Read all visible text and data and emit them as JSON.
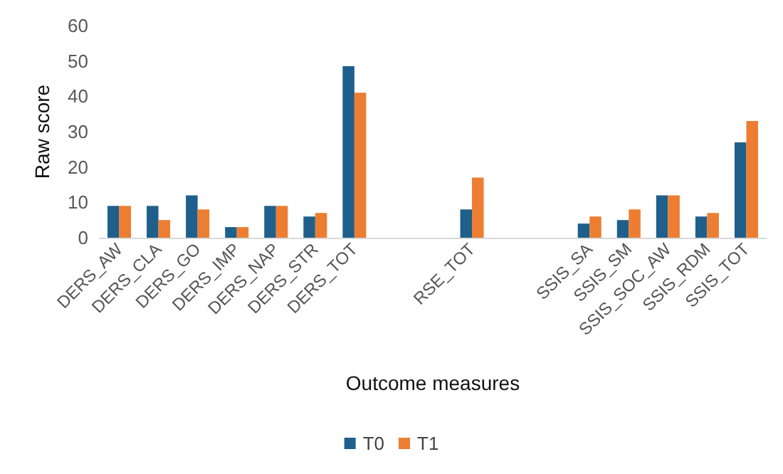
{
  "chart_data": {
    "type": "bar",
    "xlabel": "Outcome measures",
    "ylabel": "Raw score",
    "categories": [
      "DERS_AW",
      "DERS_CLA",
      "DERS_GO",
      "DERS_IMP",
      "DERS_NAP",
      "DERS_STR",
      "DERS_TOT",
      null,
      null,
      "RSE_TOT",
      null,
      null,
      "SSIS_SA",
      "SSIS_SM",
      "SSIS_SOC_AW",
      "SSIS_RDM",
      "SSIS_TOT"
    ],
    "series": [
      {
        "name": "T0",
        "color": "#1f5f8b",
        "values": [
          9,
          9,
          12,
          3,
          9,
          6,
          48.5,
          null,
          null,
          8,
          null,
          null,
          4,
          5,
          12,
          6,
          27
        ]
      },
      {
        "name": "T1",
        "color": "#ed7d31",
        "values": [
          9,
          5,
          8,
          3,
          9,
          7,
          41,
          null,
          null,
          17,
          null,
          null,
          6,
          8,
          12,
          7,
          33
        ]
      }
    ],
    "ylim": [
      0,
      60
    ],
    "yticks": [
      0,
      10,
      20,
      30,
      40,
      50,
      60
    ],
    "grid": false,
    "legend": "bottom"
  }
}
